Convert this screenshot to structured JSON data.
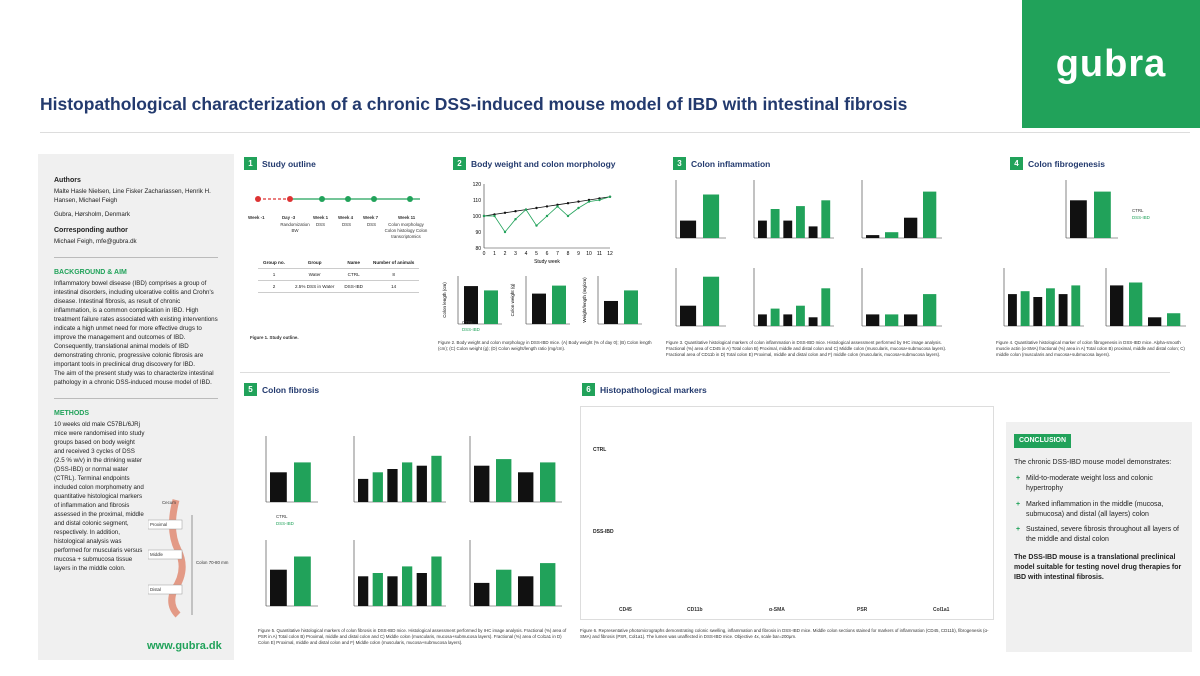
{
  "logo": {
    "text": "gubra"
  },
  "title": "Histopathological characterization of a chronic DSS-induced mouse model of IBD with intestinal fibrosis",
  "sidebar": {
    "authors_h": "Authors",
    "authors": "Malte Hasle Nielsen, Line Fisker Zachariassen, Henrik H. Hansen, Michael Feigh",
    "affil": "Gubra, Hørsholm, Denmark",
    "corr_h": "Corresponding author",
    "corr": "Michael Feigh, mfe@gubra.dk",
    "bg_h": "BACKGROUND & AIM",
    "bg1": "Inflammatory bowel disease (IBD) comprises a group of intestinal disorders, including ulcerative colitis and Crohn's disease. Intestinal fibrosis, as result of chronic inflammation, is a common complication in IBD. High treatment failure rates associated with existing interventions indicate a high unmet need for more effective drugs to improve the management and outcomes of IBD.",
    "bg2": "Consequently, translational animal models of IBD demonstrating chronic, progressive colonic fibrosis are important tools in preclinical drug discovery for IBD.",
    "bg3": "The aim of the present study was to characterize intestinal pathology in a chronic DSS-induced mouse model of IBD.",
    "meth_h": "METHODS",
    "meth": "10 weeks old male C57BL/6JRj mice were randomised into study groups based on body weight and received 3 cycles of DSS (2.5 % w/v) in the drinking water (DSS-IBD) or normal water (CTRL). Terminal endpoints included colon morphometry and quantitative histological markers of inflammation and fibrosis assessed in the proximal, middle and distal colonic segment, respectively. In addition, histological analysis was performed for muscularis versus mucosa + submucosa tissue layers in the middle colon.",
    "colon_labels": [
      "Cecum",
      "Proximal",
      "Middle",
      "Distal",
      "Colon 70-80 mm"
    ]
  },
  "www": "www.gubra.dk",
  "sections": {
    "s1": {
      "num": "1",
      "title": "Study outline"
    },
    "s2": {
      "num": "2",
      "title": "Body weight and colon morphology"
    },
    "s3": {
      "num": "3",
      "title": "Colon inflammation"
    },
    "s4": {
      "num": "4",
      "title": "Colon fibrogenesis"
    },
    "s5": {
      "num": "5",
      "title": "Colon fibrosis"
    },
    "s6": {
      "num": "6",
      "title": "Histopathological markers"
    }
  },
  "outline": {
    "weeks": [
      "Week -1",
      "Day -3",
      "Week 1",
      "Week 4",
      "Week 7",
      "Week 11"
    ],
    "events": [
      "",
      "Randomization BW",
      "DSS",
      "DSS",
      "DSS",
      "Colon morphology Colon histology Colon transcriptomics"
    ],
    "table_head": [
      "Group no.",
      "Group",
      "Name",
      "Number of animals"
    ],
    "rows": [
      [
        "1",
        "Water",
        "CTRL",
        "8"
      ],
      [
        "2",
        "2.5% DSS in Water",
        "DSS-IBD",
        "14"
      ]
    ],
    "caption": "Figure 1. Study outline."
  },
  "legend": {
    "ctrl": "CTRL",
    "dss": "DSS-IBD"
  },
  "captions": {
    "f2": "Figure 2. Body weight and colon morphology in DSS-IBD mice. (A) Body weight (% of day 0); (B) Colon length (cm); (C) Colon weight (g); (D) Colon weight/length ratio (mg/cm).",
    "f3": "Figure 3. Quantitative histological markers of colon inflammation in DSS-IBD mice. Histological assessment performed by IHC image analysis. Fractional (%) area of CD45 in A) Total colon B) Proximal, middle and distal colon and C) Middle colon (muscularis, mucosa+submucosa layers). Fractional area of CD11b in D) Total colon E) Proximal, middle and distal colon and F) middle colon (muscularis, mucosa+submucosa layers).",
    "f4": "Figure 4. Quantitative histological marker of colon fibrogenesis in DSS-IBD mice. Alpha-smooth muscle actin (α-SMA) fractional (%) area in A) Total colon B) proximal, middle and distal colon; C) middle colon (muscularis and mucosa+submucosa layers).",
    "f5": "Figure 5. Quantitative histological markers of colon fibrosis in DSS-IBD mice. Histological assessment performed by IHC image analysis. Fractional (%) area of PSR in A) Total colon B) Proximal, middle and distal colon and C) Middle colon (muscularis, mucosa+submucosa layers). Fractional (%) area of Col1a1 in D) Colon E) Proximal, middle and distal colon and F) Middle colon (muscularis, mucosa+submucosa layers).",
    "f6": "Figure 6. Representative photomicrographs demonstrating colonic swelling, inflammation and fibrosis in DSS-IBD mice. Middle colon sections stained for markers of inflammation (CD45, CD11b), fibrogenesis (α-SMA) and fibrosis (PSR, Col1a1). The lumen was unaffected in DSS-IBD mice. Objective 4x, scale bar=200μm."
  },
  "hist": {
    "ctrl": "CTRL",
    "dss": "DSS-IBD",
    "cols": [
      "CD45",
      "CD11b",
      "α-SMA",
      "PSR",
      "Col1a1"
    ]
  },
  "conclusion": {
    "hdr": "CONCLUSION",
    "intro": "The chronic DSS-IBD mouse model demonstrates:",
    "items": [
      "Mild-to-moderate weight loss and colonic hypertrophy",
      "Marked inflammation in the middle (mucosa, submucosa) and distal (all layers) colon",
      "Sustained, severe fibrosis throughout all layers of the middle and distal colon"
    ],
    "final": "The DSS-IBD mouse is a translational preclinical model suitable for testing novel drug therapies for IBD with intestinal fibrosis."
  },
  "chart_data": [
    {
      "type": "line",
      "label": "A",
      "xlabel": "Study week",
      "ylabel": "Body weight (% of day 0)",
      "x": [
        0,
        1,
        2,
        3,
        4,
        5,
        6,
        7,
        8,
        9,
        10,
        11,
        12
      ],
      "ylim": [
        80,
        120
      ],
      "series": [
        {
          "name": "CTRL",
          "values": [
            100,
            101,
            102,
            103,
            104,
            105,
            106,
            107,
            108,
            109,
            110,
            111,
            112
          ]
        },
        {
          "name": "DSS-IBD",
          "values": [
            100,
            100,
            90,
            98,
            104,
            94,
            100,
            106,
            100,
            105,
            109,
            110,
            112
          ]
        }
      ]
    },
    {
      "type": "bar",
      "label": "B",
      "ylabel": "Colon length (cm)",
      "categories": [
        "CTRL",
        "DSS-IBD"
      ],
      "values": [
        7.9,
        7.0
      ],
      "ylim": [
        0,
        10
      ]
    },
    {
      "type": "bar",
      "label": "C",
      "ylabel": "Colon weight (g)",
      "categories": [
        "CTRL",
        "DSS-IBD"
      ],
      "values": [
        0.19,
        0.24
      ],
      "ylim": [
        0,
        0.3
      ]
    },
    {
      "type": "bar",
      "label": "D",
      "ylabel": "Weight/length (mg/cm)",
      "categories": [
        "CTRL",
        "DSS-IBD"
      ],
      "values": [
        24,
        35
      ],
      "ylim": [
        0,
        50
      ]
    }
  ]
}
